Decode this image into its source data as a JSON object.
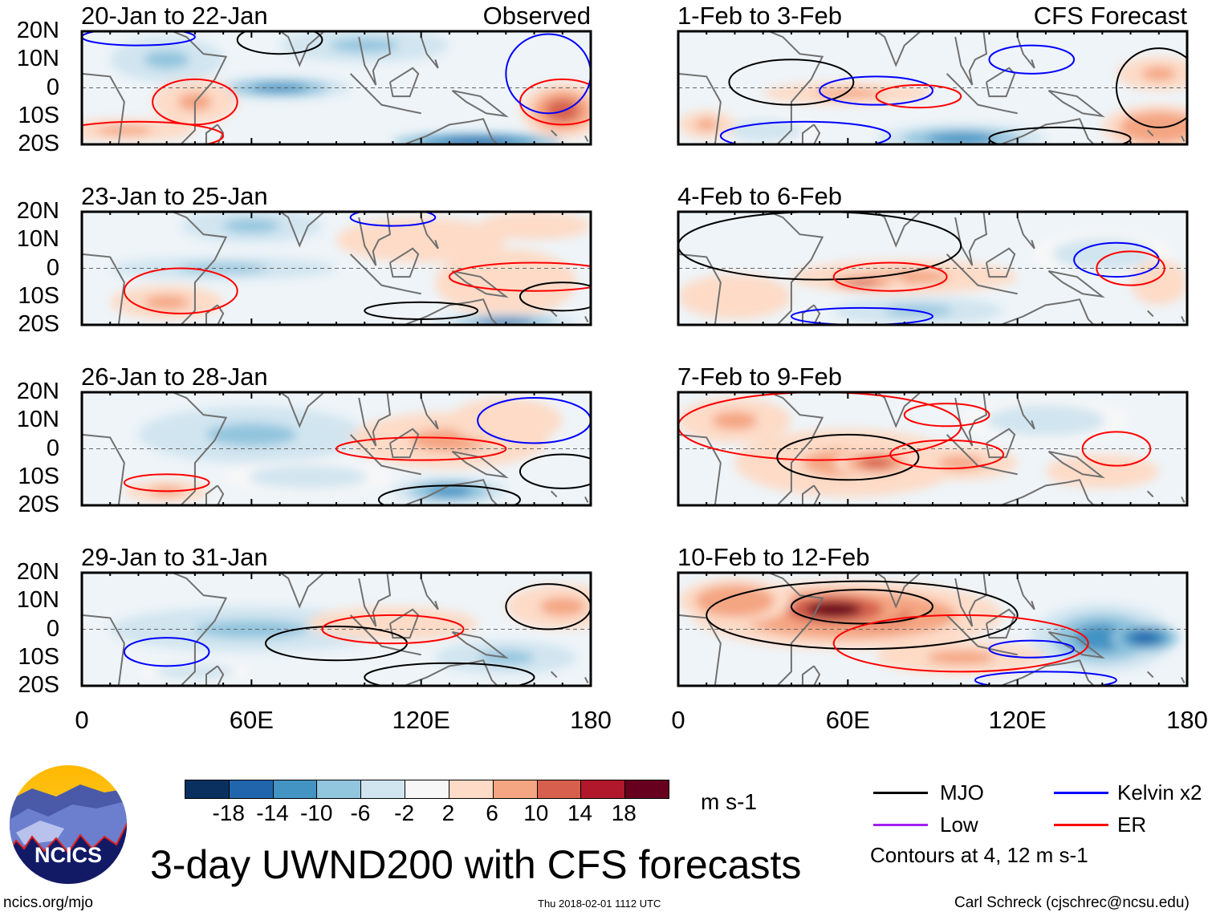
{
  "panels": [
    {
      "title": "20-Jan to 22-Jan",
      "tag": "Observed"
    },
    {
      "title": "23-Jan to 25-Jan",
      "tag": ""
    },
    {
      "title": "26-Jan to 28-Jan",
      "tag": ""
    },
    {
      "title": "29-Jan to 31-Jan",
      "tag": ""
    },
    {
      "title": "1-Feb to 3-Feb",
      "tag": "CFS Forecast"
    },
    {
      "title": "4-Feb to 6-Feb",
      "tag": ""
    },
    {
      "title": "7-Feb to 9-Feb",
      "tag": ""
    },
    {
      "title": "10-Feb to 12-Feb",
      "tag": ""
    }
  ],
  "lat_labels": [
    "20N",
    "10N",
    "0",
    "10S",
    "20S"
  ],
  "lon_labels": [
    "0",
    "60E",
    "120E",
    "180"
  ],
  "colorbar": {
    "colors": [
      "#0a3060",
      "#2166ac",
      "#4393c3",
      "#92c5de",
      "#d1e5f0",
      "#f7f7f7",
      "#fddbc7",
      "#f4a582",
      "#d6604d",
      "#b2182b",
      "#67001f"
    ],
    "labels": [
      "-18",
      "-14",
      "-10",
      "-6",
      "-2",
      "2",
      "6",
      "10",
      "14",
      "18"
    ],
    "units": "m s-1"
  },
  "legend": {
    "items": [
      {
        "label": "MJO",
        "color": "#000000"
      },
      {
        "label": "Kelvin x2",
        "color": "#0000ff"
      },
      {
        "label": "Low",
        "color": "#a020f0"
      },
      {
        "label": "ER",
        "color": "#ff0000"
      }
    ],
    "note": "Contours at 4, 12 m s-1"
  },
  "logo_text": "NCICS",
  "main_title": "3-day UWND200 with CFS forecasts",
  "footer": {
    "url": "ncics.org/mjo",
    "timestamp": "Thu 2018-02-01 1112 UTC",
    "credit": "Carl Schreck (cjschrec@ncsu.edu)"
  }
}
